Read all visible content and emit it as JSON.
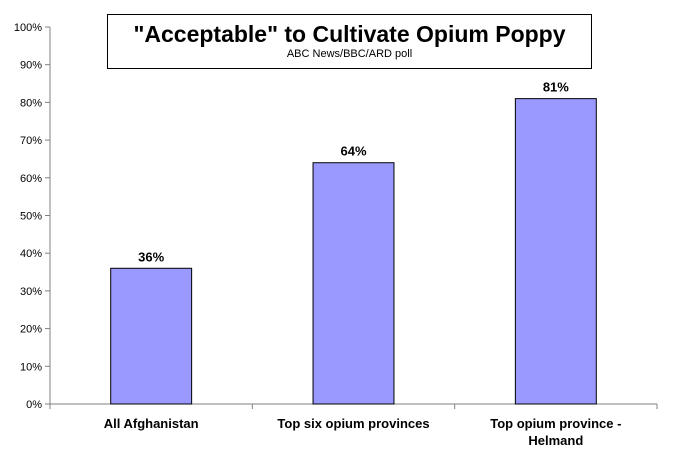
{
  "chart_data": {
    "type": "bar",
    "title": "\"Acceptable\" to Cultivate Opium Poppy",
    "subtitle": "ABC News/BBC/ARD poll",
    "categories": [
      [
        "All Afghanistan"
      ],
      [
        "Top six opium provinces"
      ],
      [
        "Top opium province -",
        "Helmand"
      ]
    ],
    "values": [
      36,
      64,
      81
    ],
    "value_labels": [
      "36%",
      "64%",
      "81%"
    ],
    "ylim": [
      0,
      100
    ],
    "yticks": [
      0,
      10,
      20,
      30,
      40,
      50,
      60,
      70,
      80,
      90,
      100
    ],
    "ytick_labels": [
      "0%",
      "10%",
      "20%",
      "30%",
      "40%",
      "50%",
      "60%",
      "70%",
      "80%",
      "90%",
      "100%"
    ],
    "bar_color": "#9999ff",
    "grid": false,
    "legend": "none"
  }
}
